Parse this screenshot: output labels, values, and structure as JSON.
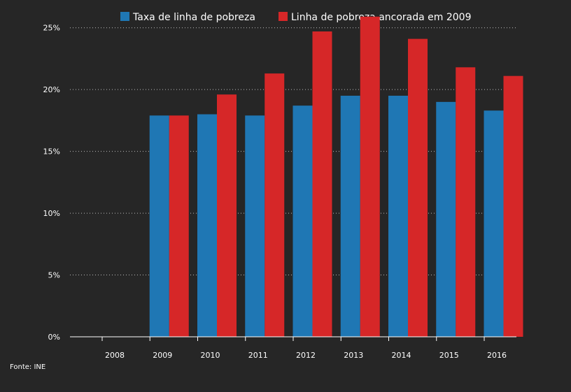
{
  "chart_data": {
    "type": "bar",
    "categories": [
      "2008",
      "2009",
      "2010",
      "2011",
      "2012",
      "2013",
      "2014",
      "2015",
      "2016"
    ],
    "series": [
      {
        "name": "Taxa de linha de pobreza",
        "color": "#1f77b4",
        "values": [
          null,
          17.9,
          18.0,
          17.9,
          18.7,
          19.5,
          19.5,
          19.0,
          18.3
        ]
      },
      {
        "name": "Linha de pobreza ancorada em 2009",
        "color": "#d62728",
        "values": [
          null,
          17.9,
          19.6,
          21.3,
          24.7,
          25.9,
          24.1,
          21.8,
          21.1
        ]
      }
    ],
    "yticks": [
      0,
      5,
      10,
      15,
      20,
      25
    ],
    "ytick_labels": [
      "0%",
      "5%",
      "10%",
      "15%",
      "20%",
      "25%"
    ],
    "ylim": [
      0,
      26
    ],
    "grid": true,
    "legend_position": "top",
    "source": "Fonte: INE"
  }
}
